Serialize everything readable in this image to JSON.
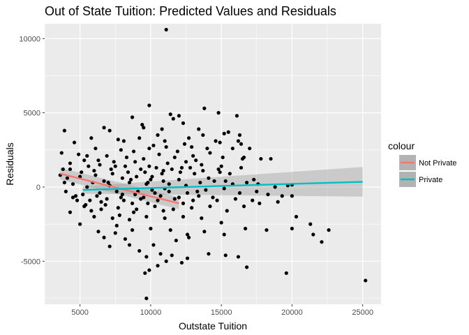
{
  "chart_data": {
    "type": "scatter",
    "title": "Out of State Tuition: Predicted Values and Residuals",
    "xlabel": "Outstate Tuition",
    "ylabel": "Residuals",
    "xlim": [
      2500,
      26300
    ],
    "ylim": [
      -7900,
      11000
    ],
    "x_ticks": [
      5000,
      10000,
      15000,
      20000,
      25000
    ],
    "x_tick_labels": [
      "5000",
      "10000",
      "15000",
      "20000",
      "25000"
    ],
    "y_ticks": [
      -5000,
      0,
      5000,
      10000
    ],
    "y_tick_labels": [
      "-5000",
      "0",
      "5000",
      "10000"
    ],
    "points_color": "#000000",
    "panel_color": "#ebebeb",
    "grid_color": "#ffffff",
    "legend": {
      "title": "colour",
      "position": "right",
      "entries": [
        {
          "label": "Not Private",
          "color": "#F8766D"
        },
        {
          "label": "Private",
          "color": "#00BFC4"
        }
      ]
    },
    "series": [
      {
        "name": "Not Private",
        "type": "smooth-line",
        "color": "#F8766D",
        "x": [
          3600,
          12000
        ],
        "y": [
          900,
          -1100
        ],
        "ci_lower": [
          500,
          -1500
        ],
        "ci_upper": [
          1300,
          -700
        ]
      },
      {
        "name": "Private",
        "type": "smooth-line",
        "color": "#00BFC4",
        "x": [
          5200,
          25000
        ],
        "y": [
          -200,
          350
        ],
        "ci_lower": [
          -450,
          -650
        ],
        "ci_upper": [
          50,
          1350
        ]
      }
    ],
    "points": [
      [
        11100,
        10600
      ],
      [
        9900,
        5500
      ],
      [
        14800,
        5000
      ],
      [
        11400,
        4900
      ],
      [
        13800,
        5300
      ],
      [
        16100,
        4800
      ],
      [
        11600,
        4600
      ],
      [
        8700,
        4700
      ],
      [
        3900,
        3800
      ],
      [
        7100,
        3800
      ],
      [
        15500,
        3700
      ],
      [
        10500,
        3500
      ],
      [
        6700,
        4000
      ],
      [
        9400,
        4200
      ],
      [
        12300,
        4300
      ],
      [
        16300,
        3500
      ],
      [
        13400,
        3900
      ],
      [
        15200,
        3600
      ],
      [
        12700,
        3300
      ],
      [
        9200,
        3300
      ],
      [
        14600,
        3100
      ],
      [
        16200,
        3100
      ],
      [
        17000,
        2600
      ],
      [
        16400,
        2900
      ],
      [
        11000,
        3100
      ],
      [
        8100,
        3100
      ],
      [
        4600,
        3000
      ],
      [
        5800,
        3300
      ],
      [
        7700,
        3200
      ],
      [
        10200,
        2800
      ],
      [
        3700,
        2300
      ],
      [
        4900,
        2200
      ],
      [
        6100,
        2600
      ],
      [
        7900,
        2500
      ],
      [
        12900,
        2700
      ],
      [
        15800,
        2600
      ],
      [
        17800,
        1900
      ],
      [
        18500,
        1900
      ],
      [
        16600,
        2000
      ],
      [
        14200,
        2300
      ],
      [
        11900,
        2400
      ],
      [
        10600,
        2200
      ],
      [
        9500,
        1900
      ],
      [
        8300,
        2000
      ],
      [
        6900,
        2100
      ],
      [
        5300,
        1800
      ],
      [
        4300,
        1600
      ],
      [
        3800,
        1200
      ],
      [
        5600,
        1400
      ],
      [
        6400,
        1500
      ],
      [
        7500,
        1400
      ],
      [
        8900,
        1700
      ],
      [
        9900,
        1400
      ],
      [
        11200,
        1600
      ],
      [
        12500,
        1700
      ],
      [
        13600,
        1500
      ],
      [
        15000,
        1400
      ],
      [
        16400,
        1300
      ],
      [
        14900,
        1000
      ],
      [
        13100,
        900
      ],
      [
        12100,
        1000
      ],
      [
        10800,
        900
      ],
      [
        9600,
        1000
      ],
      [
        8400,
        1000
      ],
      [
        7300,
        900
      ],
      [
        6100,
        800
      ],
      [
        5000,
        700
      ],
      [
        4100,
        600
      ],
      [
        3600,
        800
      ],
      [
        4500,
        200
      ],
      [
        5900,
        300
      ],
      [
        7100,
        100
      ],
      [
        8500,
        300
      ],
      [
        9700,
        200
      ],
      [
        10900,
        400
      ],
      [
        12000,
        500
      ],
      [
        13500,
        300
      ],
      [
        15300,
        400
      ],
      [
        16800,
        300
      ],
      [
        17600,
        200
      ],
      [
        18800,
        0
      ],
      [
        19700,
        100
      ],
      [
        20000,
        150
      ],
      [
        17300,
        500
      ],
      [
        4000,
        -300
      ],
      [
        5200,
        -500
      ],
      [
        6400,
        -400
      ],
      [
        7600,
        -300
      ],
      [
        8900,
        -500
      ],
      [
        10100,
        -200
      ],
      [
        11300,
        -300
      ],
      [
        12600,
        -400
      ],
      [
        13900,
        -200
      ],
      [
        15200,
        -100
      ],
      [
        16300,
        -400
      ],
      [
        17500,
        -300
      ],
      [
        18300,
        -500
      ],
      [
        19300,
        -600
      ],
      [
        20000,
        -600
      ],
      [
        17200,
        -900
      ],
      [
        16000,
        -800
      ],
      [
        14400,
        -700
      ],
      [
        13000,
        -900
      ],
      [
        11700,
        -800
      ],
      [
        10500,
        -900
      ],
      [
        9300,
        -800
      ],
      [
        8100,
        -900
      ],
      [
        6900,
        -800
      ],
      [
        5700,
        -900
      ],
      [
        4500,
        -700
      ],
      [
        4300,
        -1700
      ],
      [
        5300,
        -1300
      ],
      [
        6500,
        -1500
      ],
      [
        7700,
        -1400
      ],
      [
        9000,
        -1500
      ],
      [
        10300,
        -1300
      ],
      [
        11600,
        -1500
      ],
      [
        12900,
        -1400
      ],
      [
        14200,
        -1300
      ],
      [
        15400,
        -1600
      ],
      [
        16600,
        -1300
      ],
      [
        17700,
        -1100
      ],
      [
        19000,
        -1000
      ],
      [
        20300,
        -2000
      ],
      [
        21300,
        -2500
      ],
      [
        20000,
        -2800
      ],
      [
        21500,
        -3200
      ],
      [
        22100,
        -3700
      ],
      [
        22600,
        -2900
      ],
      [
        18200,
        -2900
      ],
      [
        16700,
        -2800
      ],
      [
        15000,
        -2400
      ],
      [
        13600,
        -2100
      ],
      [
        12300,
        -2000
      ],
      [
        11000,
        -2100
      ],
      [
        9700,
        -2000
      ],
      [
        8500,
        -2200
      ],
      [
        7300,
        -2100
      ],
      [
        6000,
        -2000
      ],
      [
        5000,
        -2500
      ],
      [
        6300,
        -3000
      ],
      [
        7500,
        -3100
      ],
      [
        8700,
        -2900
      ],
      [
        10000,
        -2800
      ],
      [
        11400,
        -2900
      ],
      [
        12600,
        -3200
      ],
      [
        13800,
        -3000
      ],
      [
        15200,
        -3200
      ],
      [
        14100,
        -4500
      ],
      [
        15300,
        -4600
      ],
      [
        16200,
        -4700
      ],
      [
        16800,
        -5400
      ],
      [
        12600,
        -4800
      ],
      [
        11500,
        -4600
      ],
      [
        10700,
        -4500
      ],
      [
        9700,
        -4700
      ],
      [
        10500,
        -5300
      ],
      [
        11100,
        -5000
      ],
      [
        12200,
        -5100
      ],
      [
        9900,
        -5600
      ],
      [
        9600,
        -5800
      ],
      [
        9700,
        -7500
      ],
      [
        19600,
        -5800
      ],
      [
        25200,
        -6300
      ],
      [
        7100,
        -4000
      ],
      [
        8500,
        -3900
      ],
      [
        9200,
        -4300
      ],
      [
        10200,
        -3900
      ],
      [
        11800,
        -3600
      ],
      [
        12700,
        -3400
      ],
      [
        8200,
        -3500
      ],
      [
        6700,
        -3400
      ],
      [
        7600,
        -2600
      ],
      [
        5400,
        -1200
      ],
      [
        6200,
        -600
      ],
      [
        8700,
        -1100
      ],
      [
        9500,
        -700
      ],
      [
        10700,
        -600
      ],
      [
        12300,
        -1100
      ],
      [
        13400,
        -600
      ],
      [
        14700,
        -900
      ],
      [
        15800,
        200
      ],
      [
        14100,
        600
      ],
      [
        12800,
        1300
      ],
      [
        11500,
        1200
      ],
      [
        10100,
        700
      ],
      [
        8000,
        600
      ],
      [
        6700,
        400
      ],
      [
        5500,
        0
      ],
      [
        4800,
        -900
      ],
      [
        3900,
        300
      ],
      [
        4300,
        1200
      ],
      [
        5100,
        1000
      ],
      [
        6000,
        1100
      ],
      [
        7200,
        1200
      ],
      [
        8200,
        1400
      ],
      [
        9300,
        1200
      ],
      [
        10400,
        1300
      ],
      [
        11700,
        2000
      ],
      [
        13000,
        2100
      ],
      [
        14000,
        2600
      ],
      [
        15100,
        2000
      ],
      [
        16500,
        1900
      ],
      [
        15600,
        900
      ],
      [
        14500,
        400
      ],
      [
        13300,
        -300
      ],
      [
        12000,
        -700
      ],
      [
        10900,
        -1600
      ],
      [
        9800,
        -1100
      ],
      [
        8800,
        -1700
      ],
      [
        7800,
        -1900
      ],
      [
        6800,
        -1200
      ],
      [
        5800,
        -1600
      ],
      [
        4700,
        -600
      ],
      [
        7000,
        300
      ],
      [
        8000,
        -500
      ],
      [
        9000,
        700
      ],
      [
        10000,
        500
      ],
      [
        11000,
        -100
      ],
      [
        12500,
        100
      ],
      [
        13700,
        1100
      ],
      [
        14800,
        1200
      ],
      [
        11300,
        200
      ],
      [
        10300,
        -400
      ],
      [
        9100,
        -300
      ],
      [
        7900,
        -700
      ],
      [
        6500,
        -1000
      ],
      [
        8600,
        500
      ],
      [
        9800,
        300
      ],
      [
        10900,
        1100
      ],
      [
        12200,
        1300
      ],
      [
        13200,
        1800
      ],
      [
        7400,
        1700
      ],
      [
        6300,
        1800
      ],
      [
        5500,
        2100
      ],
      [
        8800,
        2400
      ],
      [
        9900,
        2600
      ],
      [
        11100,
        2700
      ],
      [
        12400,
        2900
      ],
      [
        13700,
        3500
      ],
      [
        14900,
        3000
      ],
      [
        10800,
        3900
      ],
      [
        12000,
        4800
      ],
      [
        9500,
        4000
      ]
    ]
  }
}
